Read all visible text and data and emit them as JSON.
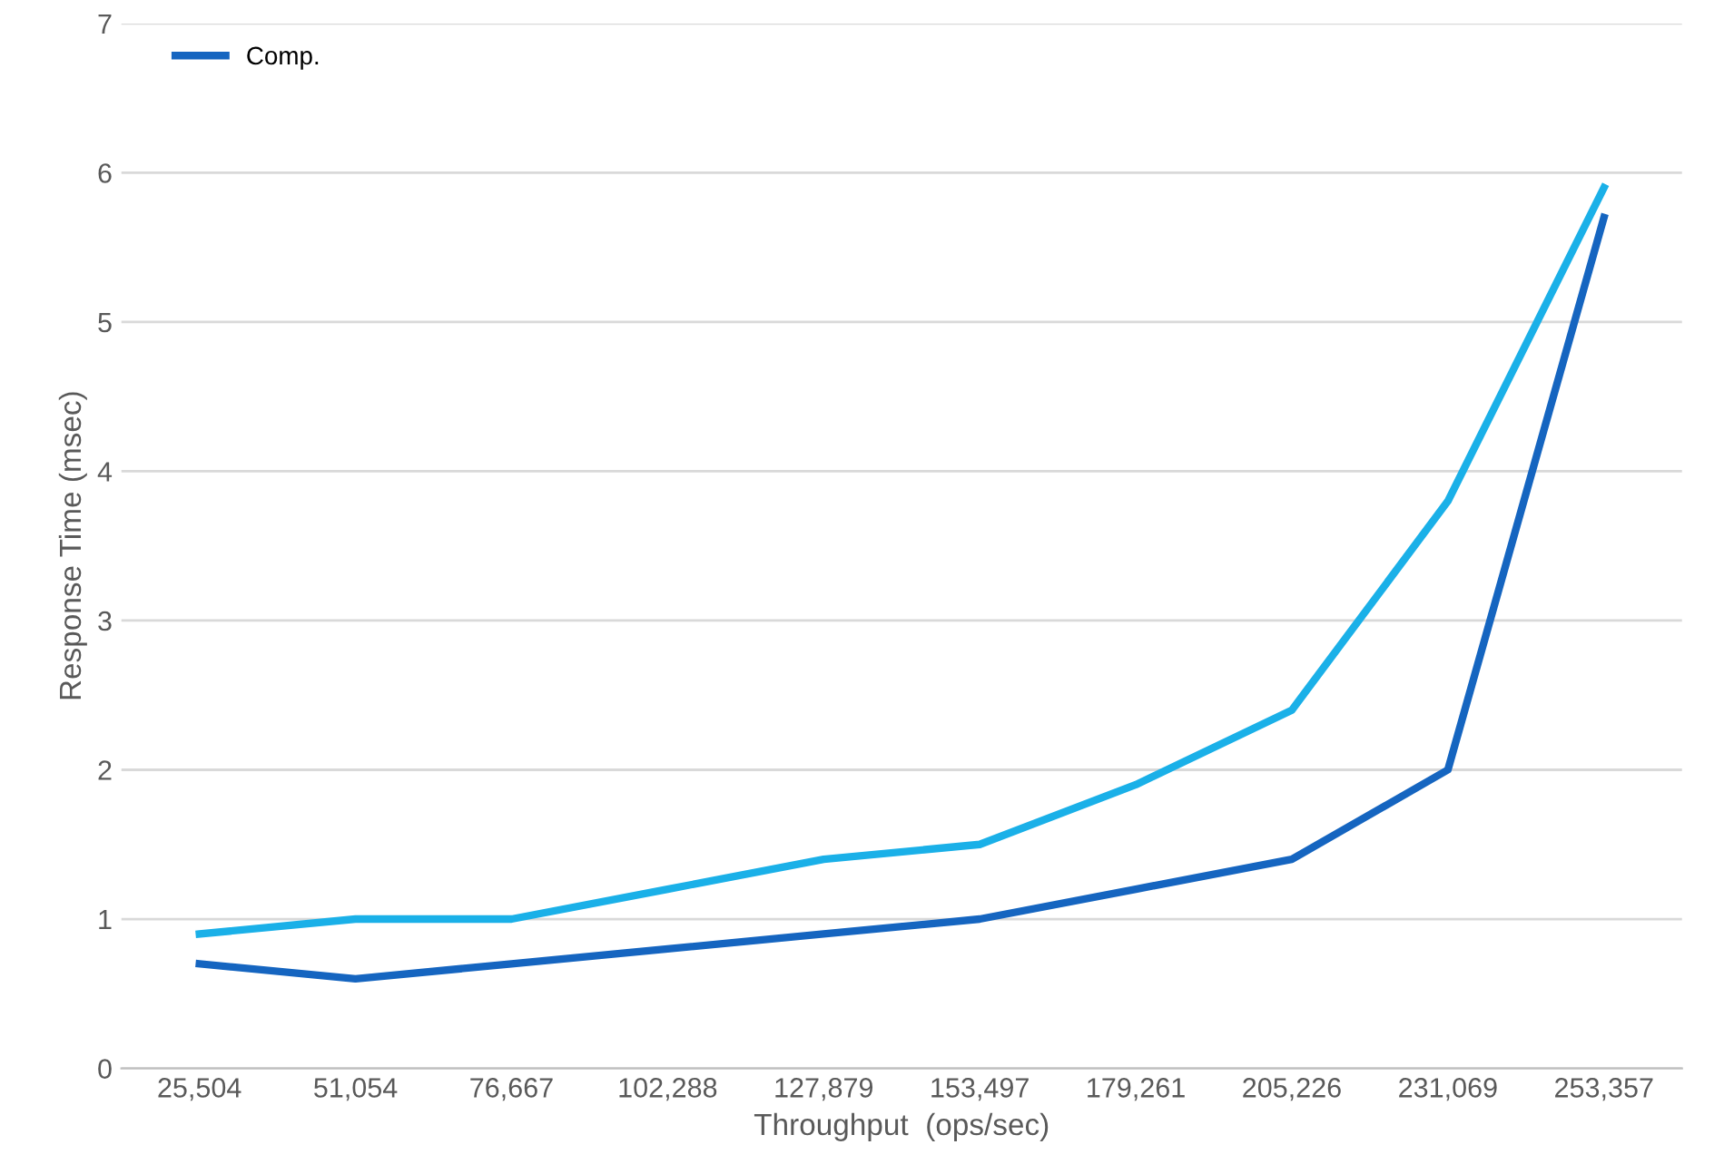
{
  "chart_data": {
    "type": "line",
    "xlabel": "Throughput  (ops/sec)",
    "ylabel": "Response Time (msec)",
    "categories": [
      "25,504",
      "51,054",
      "76,667",
      "102,288",
      "127,879",
      "153,497",
      "179,261",
      "205,226",
      "231,069",
      "253,357"
    ],
    "series": [
      {
        "name": "Comp.",
        "color": "#1565c0",
        "values": [
          0.7,
          0.6,
          0.7,
          0.8,
          0.9,
          1.0,
          1.2,
          1.4,
          2.0,
          5.7
        ]
      },
      {
        "color": "#1ab0e8",
        "values": [
          0.9,
          1.0,
          1.0,
          1.2,
          1.4,
          1.5,
          1.9,
          2.4,
          3.8,
          5.9
        ]
      }
    ],
    "ylim": [
      0,
      7
    ],
    "yticks": [
      0,
      1,
      2,
      3,
      4,
      5,
      6,
      7
    ],
    "grid": "y",
    "legend": "top left",
    "marker": "none",
    "line_style": "solid"
  }
}
